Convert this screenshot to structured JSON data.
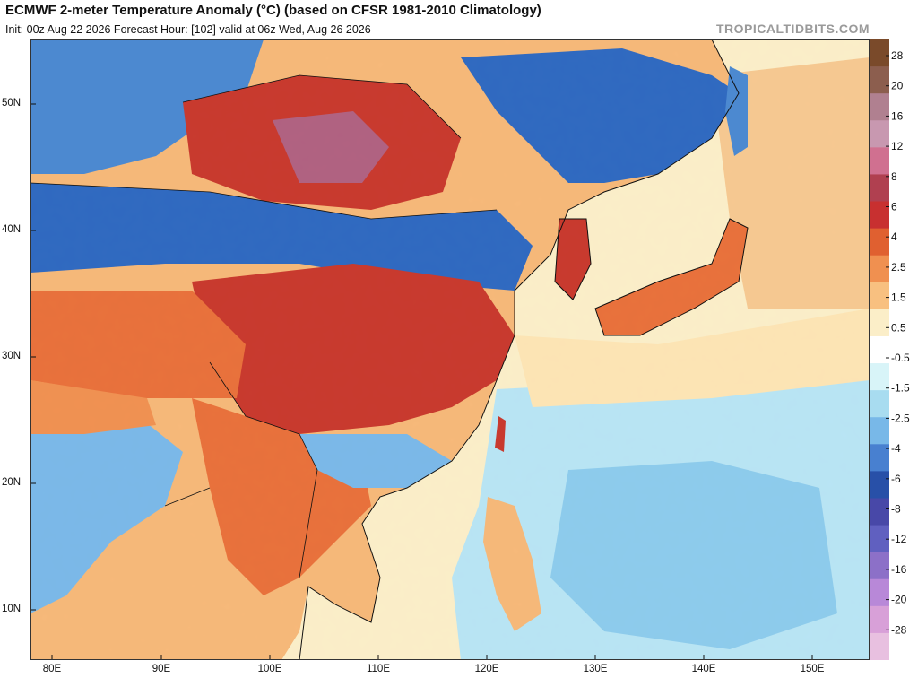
{
  "header": {
    "title": "ECMWF 2-meter Temperature Anomaly (°C) (based on CFSR 1981-2010 Climatology)",
    "subtitle": "Init: 00z Aug 22 2026   Forecast Hour: [102]   valid at 06z Wed, Aug 26 2026",
    "watermark": "TROPICALTIDBITS.COM"
  },
  "axes": {
    "lat_labels": [
      "50N",
      "40N",
      "30N",
      "20N",
      "10N"
    ],
    "lon_labels": [
      "80E",
      "90E",
      "100E",
      "110E",
      "120E",
      "130E",
      "140E",
      "150E"
    ]
  },
  "legend": {
    "values": [
      "28",
      "20",
      "16",
      "12",
      "8",
      "6",
      "4",
      "2.5",
      "1.5",
      "0.5",
      "-0.5",
      "-1.5",
      "-2.5",
      "-4",
      "-6",
      "-8",
      "-12",
      "-16",
      "-20",
      "-28"
    ],
    "colors": [
      "#7a4a2a",
      "#8c5e4e",
      "#b08090",
      "#c898b0",
      "#d07090",
      "#b04050",
      "#c83030",
      "#e06030",
      "#f09050",
      "#f8c080",
      "#fbeec8",
      "#ffffff",
      "#d8f4f8",
      "#a8dcf0",
      "#78b8e8",
      "#4880d0",
      "#2850a8",
      "#4848a8",
      "#6060c0",
      "#8c70c8",
      "#b888d8",
      "#d8a0d8",
      "#e8c0e0"
    ]
  },
  "map": {
    "region": "East Asia and Western Pacific",
    "ocean_color": "#fbeec8",
    "land_colors": {
      "warm": "#e8703a",
      "hot": "#c8382c",
      "very_hot": "#b06080",
      "mild": "#f6b878",
      "cool": "#7ab8e8",
      "cold": "#2e68c0",
      "light_cool": "#b8e4f4"
    }
  }
}
